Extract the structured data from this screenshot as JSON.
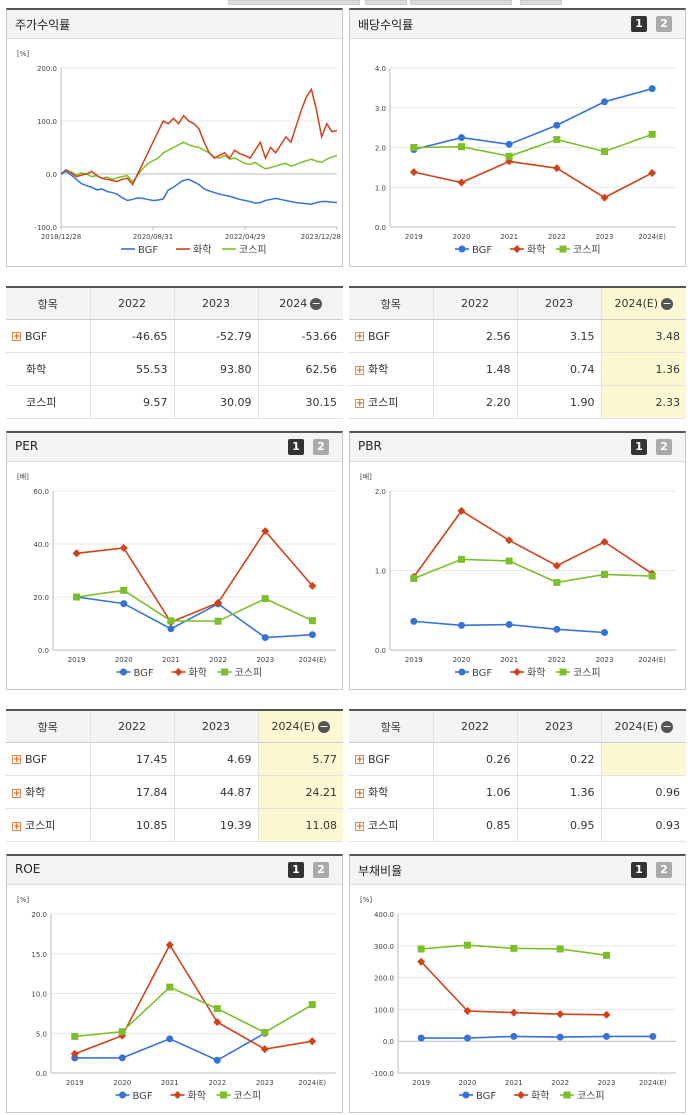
{
  "tabs": {
    "page_label_1": "1",
    "page_label_2": "2"
  },
  "charts": {
    "stock": {
      "title": "주가수익률",
      "chart_data": {
        "type": "line",
        "title": "주가수익률",
        "unit": "[%]",
        "ylim": [
          -100,
          200
        ],
        "yticks": [
          "200.0",
          "100.0",
          "0.0",
          "-100.0"
        ],
        "xticks": [
          "2018/12/28",
          "2020/08/31",
          "2022/04/29",
          "2023/12/28"
        ],
        "x_range": [
          "2018-12-28",
          "2024-01-31"
        ],
        "series": [
          {
            "name": "BGF",
            "color": "#3573d9",
            "marker": "circle",
            "values": [
              0,
              5,
              -2,
              -10,
              -18,
              -22,
              -25,
              -30,
              -28,
              -33,
              -35,
              -38,
              -45,
              -50,
              -48,
              -45,
              -46,
              -48,
              -50,
              -49,
              -47,
              -30,
              -25,
              -18,
              -12,
              -10,
              -15,
              -20,
              -28,
              -32,
              -35,
              -38,
              -40,
              -42,
              -45,
              -48,
              -50,
              -52,
              -55,
              -54,
              -50,
              -48,
              -46,
              -48,
              -50,
              -52,
              -54,
              -55,
              -56,
              -57,
              -54,
              -52,
              -52,
              -53,
              -54
            ]
          },
          {
            "name": "화학",
            "color": "#d0431a",
            "marker": "diamond",
            "values": [
              0,
              8,
              2,
              -5,
              -2,
              0,
              5,
              -3,
              -8,
              -10,
              -12,
              -14,
              -10,
              -8,
              -20,
              0,
              20,
              40,
              60,
              80,
              100,
              95,
              105,
              95,
              110,
              100,
              95,
              85,
              60,
              40,
              30,
              35,
              40,
              30,
              45,
              38,
              35,
              30,
              45,
              60,
              30,
              50,
              40,
              55,
              70,
              60,
              90,
              120,
              145,
              160,
              120,
              70,
              95,
              80,
              82
            ]
          },
          {
            "name": "코스피",
            "color": "#7cbf2a",
            "marker": "square",
            "values": [
              0,
              6,
              4,
              -2,
              2,
              0,
              -5,
              -3,
              -8,
              -6,
              -10,
              -7,
              -5,
              -3,
              -15,
              -2,
              10,
              20,
              25,
              30,
              40,
              45,
              50,
              55,
              60,
              55,
              52,
              50,
              45,
              40,
              32,
              30,
              35,
              28,
              30,
              25,
              20,
              18,
              22,
              15,
              10,
              12,
              15,
              18,
              20,
              15,
              18,
              22,
              25,
              28,
              24,
              22,
              28,
              32,
              35
            ]
          }
        ]
      }
    },
    "dividend": {
      "title": "배당수익률",
      "chart_data": {
        "type": "line",
        "title": "배당수익률",
        "ylim": [
          0,
          4
        ],
        "yticks": [
          "4.0",
          "3.0",
          "2.0",
          "1.0",
          "0.0"
        ],
        "categories": [
          "2019",
          "2020",
          "2021",
          "2022",
          "2023",
          "2024(E)"
        ],
        "series": [
          {
            "name": "BGF",
            "color": "#3573d9",
            "marker": "circle",
            "values": [
              1.95,
              2.25,
              2.08,
              2.56,
              3.15,
              3.48
            ]
          },
          {
            "name": "화학",
            "color": "#d0431a",
            "marker": "diamond",
            "values": [
              1.38,
              1.12,
              1.65,
              1.48,
              0.74,
              1.36
            ]
          },
          {
            "name": "코스피",
            "color": "#7cbf2a",
            "marker": "square",
            "values": [
              2.0,
              2.02,
              1.78,
              2.2,
              1.9,
              2.33
            ]
          }
        ]
      }
    },
    "per": {
      "title": "PER",
      "chart_data": {
        "type": "line",
        "title": "PER",
        "unit": "[배]",
        "ylim": [
          0,
          60
        ],
        "yticks": [
          "60.0",
          "40.0",
          "20.0",
          "0.0"
        ],
        "categories": [
          "2019",
          "2020",
          "2021",
          "2022",
          "2023",
          "2024(E)"
        ],
        "series": [
          {
            "name": "BGF",
            "color": "#3573d9",
            "marker": "circle",
            "values": [
              20.0,
              17.5,
              8.0,
              17.45,
              4.69,
              5.77
            ]
          },
          {
            "name": "화학",
            "color": "#d0431a",
            "marker": "diamond",
            "values": [
              36.5,
              38.5,
              10.5,
              17.84,
              44.87,
              24.21
            ]
          },
          {
            "name": "코스피",
            "color": "#7cbf2a",
            "marker": "square",
            "values": [
              20.0,
              22.5,
              11.0,
              10.85,
              19.39,
              11.08
            ]
          }
        ]
      }
    },
    "pbr": {
      "title": "PBR",
      "chart_data": {
        "type": "line",
        "title": "PBR",
        "unit": "[배]",
        "ylim": [
          0,
          2
        ],
        "yticks": [
          "2.0",
          "1.0",
          "0.0"
        ],
        "categories": [
          "2019",
          "2020",
          "2021",
          "2022",
          "2023",
          "2024(E)"
        ],
        "series": [
          {
            "name": "BGF",
            "color": "#3573d9",
            "marker": "circle",
            "values": [
              0.36,
              0.31,
              0.32,
              0.26,
              0.22,
              null
            ]
          },
          {
            "name": "화학",
            "color": "#d0431a",
            "marker": "diamond",
            "values": [
              0.92,
              1.75,
              1.38,
              1.06,
              1.36,
              0.96
            ]
          },
          {
            "name": "코스피",
            "color": "#7cbf2a",
            "marker": "square",
            "values": [
              0.9,
              1.14,
              1.12,
              0.85,
              0.95,
              0.93
            ]
          }
        ]
      }
    },
    "roe": {
      "title": "ROE",
      "chart_data": {
        "type": "line",
        "title": "ROE",
        "unit": "[%]",
        "ylim": [
          0,
          20
        ],
        "yticks": [
          "20.0",
          "15.0",
          "10.0",
          "5.0",
          "0.0"
        ],
        "categories": [
          "2019",
          "2020",
          "2021",
          "2022",
          "2023",
          "2024(E)"
        ],
        "series": [
          {
            "name": "BGF",
            "color": "#3573d9",
            "marker": "circle",
            "values": [
              1.9,
              1.9,
              4.3,
              1.6,
              5.0,
              null
            ]
          },
          {
            "name": "화학",
            "color": "#d0431a",
            "marker": "diamond",
            "values": [
              2.4,
              4.7,
              16.1,
              6.4,
              3.0,
              4.0
            ]
          },
          {
            "name": "코스피",
            "color": "#7cbf2a",
            "marker": "square",
            "values": [
              4.6,
              5.2,
              10.8,
              8.1,
              5.1,
              8.6
            ]
          }
        ]
      }
    },
    "debt": {
      "title": "부채비율",
      "chart_data": {
        "type": "line",
        "title": "부채비율",
        "unit": "[%]",
        "ylim": [
          -100,
          400
        ],
        "yticks": [
          "400.0",
          "300.0",
          "200.0",
          "100.0",
          "0.0",
          "-100.0"
        ],
        "categories": [
          "2019",
          "2020",
          "2021",
          "2022",
          "2023",
          "2024(E)"
        ],
        "series": [
          {
            "name": "BGF",
            "color": "#3573d9",
            "marker": "circle",
            "values": [
              10,
              10,
              15,
              13,
              15,
              15
            ]
          },
          {
            "name": "화학",
            "color": "#d0431a",
            "marker": "diamond",
            "values": [
              250,
              95,
              90,
              85,
              83,
              null
            ]
          },
          {
            "name": "코스피",
            "color": "#7cbf2a",
            "marker": "square",
            "values": [
              290,
              302,
              292,
              290,
              270,
              null
            ]
          }
        ]
      }
    }
  },
  "tables": {
    "stock": {
      "headers": [
        "항목",
        "2022",
        "2023",
        "2024"
      ],
      "rows": [
        {
          "name": "BGF",
          "vals": [
            "-46.65",
            "-52.79",
            "-53.66"
          ],
          "expand": true
        },
        {
          "name": "화학",
          "vals": [
            "55.53",
            "93.80",
            "62.56"
          ],
          "expand": false
        },
        {
          "name": "코스피",
          "vals": [
            "9.57",
            "30.09",
            "30.15"
          ],
          "expand": false
        }
      ]
    },
    "dividend": {
      "headers": [
        "항목",
        "2022",
        "2023",
        "2024(E)"
      ],
      "rows": [
        {
          "name": "BGF",
          "vals": [
            "2.56",
            "3.15",
            "3.48"
          ],
          "expand": true
        },
        {
          "name": "화학",
          "vals": [
            "1.48",
            "0.74",
            "1.36"
          ],
          "expand": true
        },
        {
          "name": "코스피",
          "vals": [
            "2.20",
            "1.90",
            "2.33"
          ],
          "expand": true
        }
      ]
    },
    "per": {
      "headers": [
        "항목",
        "2022",
        "2023",
        "2024(E)"
      ],
      "rows": [
        {
          "name": "BGF",
          "vals": [
            "17.45",
            "4.69",
            "5.77"
          ],
          "expand": true
        },
        {
          "name": "화학",
          "vals": [
            "17.84",
            "44.87",
            "24.21"
          ],
          "expand": true
        },
        {
          "name": "코스피",
          "vals": [
            "10.85",
            "19.39",
            "11.08"
          ],
          "expand": true
        }
      ]
    },
    "pbr": {
      "headers": [
        "항목",
        "2022",
        "2023",
        "2024(E)"
      ],
      "rows": [
        {
          "name": "BGF",
          "vals": [
            "0.26",
            "0.22",
            ""
          ],
          "expand": true
        },
        {
          "name": "화학",
          "vals": [
            "1.06",
            "1.36",
            "0.96"
          ],
          "expand": true
        },
        {
          "name": "코스피",
          "vals": [
            "0.85",
            "0.95",
            "0.93"
          ],
          "expand": true
        }
      ]
    }
  }
}
